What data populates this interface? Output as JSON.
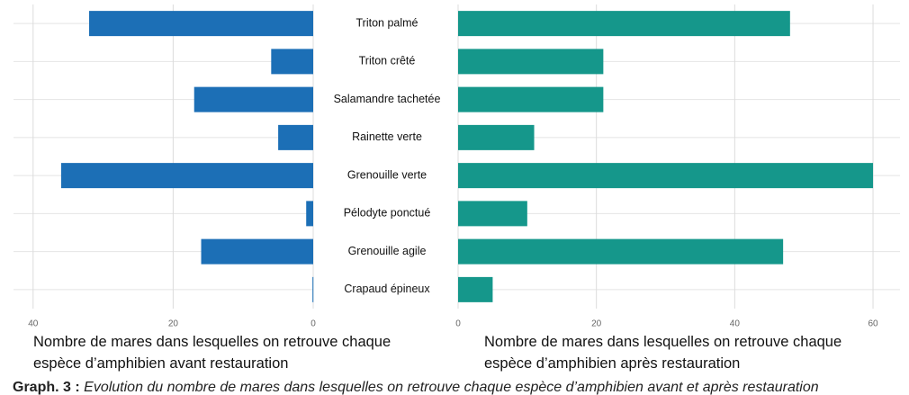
{
  "chart_data": [
    {
      "type": "bar",
      "orientation": "horizontal",
      "reversed": true,
      "color": "#1c6fb6",
      "categories": [
        "Triton palmé",
        "Triton crêté",
        "Salamandre tachetée",
        "Rainette verte",
        "Grenouille verte",
        "Pélodyte ponctué",
        "Grenouille agile",
        "Crapaud épineux"
      ],
      "values": [
        32,
        6,
        17,
        5,
        36,
        1,
        16,
        0.1
      ],
      "xlim": [
        42.8,
        0
      ],
      "xticks": [
        40,
        20,
        0
      ],
      "grid": true,
      "xlabel": "Nombre de mares dans lesquelles on retrouve chaque espèce d’amphibien avant restauration"
    },
    {
      "type": "bar",
      "orientation": "horizontal",
      "color": "#15978b",
      "values": [
        48,
        21,
        21,
        11,
        60,
        10,
        47,
        5
      ],
      "xlim": [
        0,
        63.9
      ],
      "xticks": [
        0,
        20,
        40,
        60
      ],
      "grid": true,
      "xlabel": "Nombre de mares dans lesquelles on retrouve chaque espèce d’amphibien après restauration"
    }
  ],
  "caption": {
    "label": "Graph. 3 :",
    "text": "Evolution du nombre de mares dans lesquelles on retrouve chaque espèce d’amphibien avant et après restauration"
  }
}
